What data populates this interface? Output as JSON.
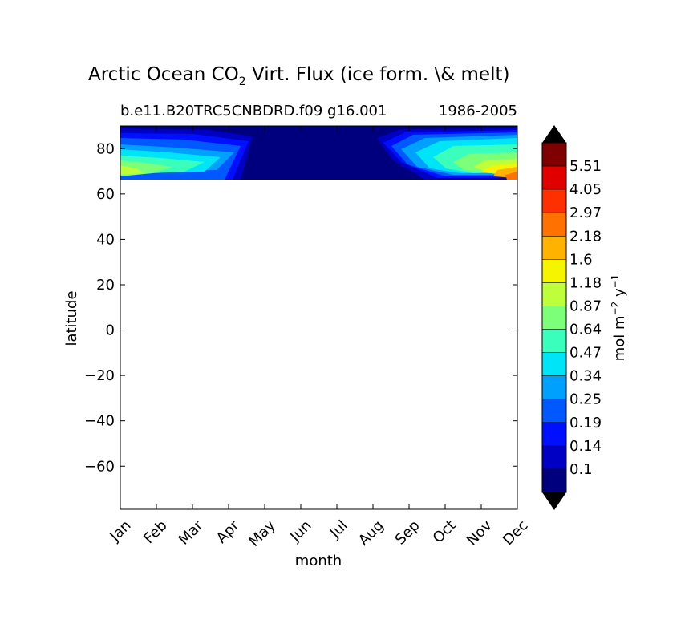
{
  "chart_data": {
    "type": "heatmap",
    "title_main": "Arctic Ocean CO",
    "title_sub": "2",
    "title_rest": " Virt. Flux (ice form. \\& melt)",
    "subtitle_left": "b.e11.B20TRC5CNBDRD.f09 g16.001",
    "subtitle_right": "1986-2005",
    "xlabel": "month",
    "ylabel": "latitude",
    "x_categories": [
      "Jan",
      "Feb",
      "Mar",
      "Apr",
      "May",
      "Jun",
      "Jul",
      "Aug",
      "Sep",
      "Oct",
      "Nov",
      "Dec"
    ],
    "ylim": [
      -79,
      90
    ],
    "y_ticks": [
      "80",
      "60",
      "40",
      "20",
      "0",
      "−20",
      "−40",
      "−60"
    ],
    "data_lat_range": [
      66,
      90
    ],
    "grid": false,
    "colorbar": {
      "label_main": "mol m",
      "label_exp1": "−2",
      "label_mid": " y",
      "label_exp2": "−1",
      "levels": [
        "0.1",
        "0.14",
        "0.19",
        "0.25",
        "0.34",
        "0.47",
        "0.64",
        "0.87",
        "1.18",
        "1.6",
        "2.18",
        "2.97",
        "4.05",
        "5.51"
      ],
      "colors": [
        "#00007f",
        "#0000c4",
        "#0010ff",
        "#0058ff",
        "#00a0ff",
        "#00e4f7",
        "#3affbc",
        "#7cff79",
        "#bcff3a",
        "#f7f400",
        "#ffb300",
        "#ff7100",
        "#ff3000",
        "#e00000",
        "#7f0000"
      ],
      "extend_low": "#000000",
      "extend_high": "#000000"
    }
  }
}
